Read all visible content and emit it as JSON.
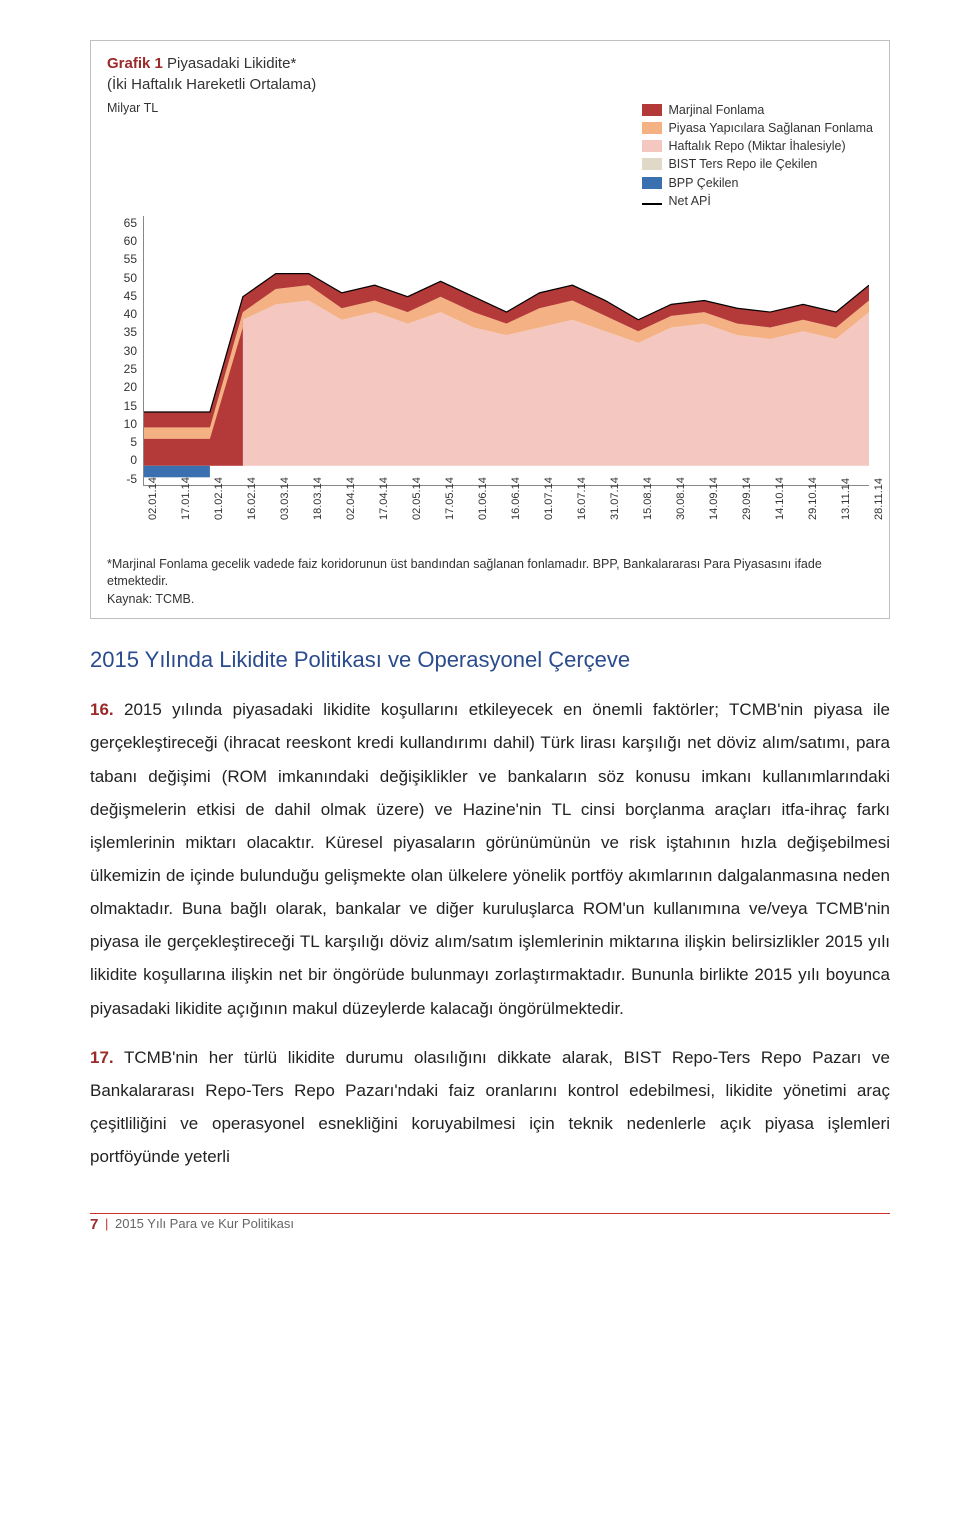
{
  "chart": {
    "title_prefix": "Grafik 1",
    "title_rest": " Piyasadaki Likidite*",
    "subtitle": "(İki Haftalık Hareketli Ortalama)",
    "y_unit": "Milyar TL",
    "type": "stacked-area",
    "ylim": [
      -5,
      65
    ],
    "ytick_step": 5,
    "yticks": [
      "65",
      "60",
      "55",
      "50",
      "45",
      "40",
      "35",
      "30",
      "25",
      "20",
      "15",
      "10",
      "5",
      "0",
      "-5"
    ],
    "xticks": [
      "02.01.14",
      "17.01.14",
      "01.02.14",
      "16.02.14",
      "03.03.14",
      "18.03.14",
      "02.04.14",
      "17.04.14",
      "02.05.14",
      "17.05.14",
      "01.06.14",
      "16.06.14",
      "01.07.14",
      "16.07.14",
      "31.07.14",
      "15.08.14",
      "30.08.14",
      "14.09.14",
      "29.09.14",
      "14.10.14",
      "29.10.14",
      "13.11.14",
      "28.11.14"
    ],
    "legend": [
      {
        "label": "Marjinal Fonlama",
        "color": "#b43a3a"
      },
      {
        "label": "Piyasa Yapıcılara Sağlanan Fonlama",
        "color": "#f4b183"
      },
      {
        "label": "Haftalık Repo (Miktar İhalesiyle)",
        "color": "#f4c7c0"
      },
      {
        "label": "BIST Ters Repo ile Çekilen",
        "color": "#e0d9c7"
      },
      {
        "label": "BPP Çekilen",
        "color": "#3a6fb0"
      },
      {
        "label": "Net APİ",
        "color": "#000000",
        "is_line": true
      }
    ],
    "background_color": "#ffffff",
    "axis_color": "#888888",
    "series_top_approx": {
      "comment": "approximate upper envelope (Net API line) values read from chart, one per xtick, units Milyar TL",
      "net_api": [
        14,
        14,
        14,
        44,
        50,
        50,
        45,
        47,
        44,
        48,
        44,
        40,
        45,
        47,
        43,
        38,
        42,
        43,
        41,
        40,
        42,
        40,
        47
      ],
      "marjinal_top": [
        14,
        14,
        14,
        38,
        42,
        43,
        38,
        40,
        37,
        40,
        36,
        34,
        36,
        38,
        35,
        32,
        36,
        37,
        34,
        33,
        35,
        33,
        40
      ],
      "piyasa_yapici_top": [
        10,
        10,
        10,
        40,
        46,
        47,
        41,
        43,
        40,
        44,
        40,
        37,
        41,
        43,
        39,
        35,
        39,
        40,
        37,
        36,
        38,
        36,
        43
      ]
    },
    "net_api_line_color": "#000000",
    "net_api_line_width": 1.2
  },
  "footnote": {
    "line1": "*Marjinal Fonlama gecelik vadede faiz koridorunun üst bandından sağlanan fonlamadır. BPP, Bankalararası Para Piyasasını ifade etmektedir.",
    "line2": "Kaynak: TCMB."
  },
  "heading": "2015 Yılında Likidite Politikası ve Operasyonel Çerçeve",
  "para16_num": "16.",
  "para16": " 2015 yılında piyasadaki likidite koşullarını etkileyecek en önemli faktörler; TCMB'nin piyasa ile gerçekleştireceği (ihracat reeskont kredi kullandırımı dahil) Türk lirası karşılığı net döviz alım/satımı, para tabanı değişimi (ROM imkanındaki değişiklikler ve bankaların söz konusu imkanı kullanımlarındaki değişmelerin etkisi de dahil olmak üzere) ve Hazine'nin TL cinsi borçlanma araçları itfa-ihraç farkı işlemlerinin miktarı olacaktır. Küresel piyasaların görünümünün ve risk iştahının hızla değişebilmesi ülkemizin de içinde bulunduğu gelişmekte olan ülkelere yönelik portföy akımlarının dalgalanmasına neden olmaktadır. Buna bağlı olarak, bankalar ve diğer kuruluşlarca ROM'un kullanımına ve/veya TCMB'nin piyasa ile gerçekleştireceği TL karşılığı döviz alım/satım işlemlerinin miktarına ilişkin belirsizlikler 2015 yılı likidite koşullarına ilişkin net bir öngörüde bulunmayı zorlaştırmaktadır. Bununla birlikte 2015 yılı boyunca piyasadaki likidite açığının makul düzeylerde kalacağı öngörülmektedir.",
  "para17_num": "17.",
  "para17": " TCMB'nin her türlü likidite durumu olasılığını dikkate alarak, BIST Repo-Ters Repo Pazarı ve Bankalararası Repo-Ters Repo Pazarı'ndaki faiz oranlarını kontrol edebilmesi, likidite yönetimi araç çeşitliliğini ve operasyonel esnekliğini koruyabilmesi için teknik nedenlerle açık piyasa işlemleri portföyünde yeterli",
  "footer": {
    "page": "7",
    "text": "2015 Yılı Para ve Kur Politikası"
  }
}
